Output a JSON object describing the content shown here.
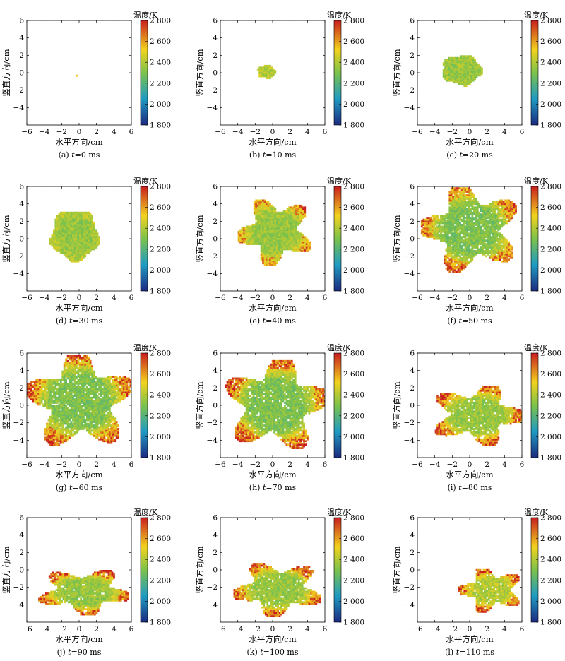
{
  "figure": {
    "xlabel": "水平方向/cm",
    "ylabel": "竖直方向/cm",
    "colorbar_label": "温度/K",
    "colorbar_ticks": [
      "1 800",
      "2 000",
      "2 200",
      "2 400",
      "2 600",
      "2 800"
    ],
    "x_ticks": [
      "−6",
      "−4",
      "−2",
      "0",
      "2",
      "4",
      "6"
    ],
    "y_ticks": [
      "6",
      "4",
      "2",
      "0",
      "−2",
      "−4"
    ],
    "colors": {
      "low": "#1b2a80",
      "mid_low": "#1f9bc2",
      "mid": "#7cc24a",
      "mid_high": "#f2d21e",
      "high": "#c81e1e"
    }
  },
  "chart_data": [
    {
      "type": "heatmap",
      "caption_letter": "(a)",
      "caption_time": "0 ms",
      "caption_eq": "t=",
      "time_ms": 0,
      "xlim": [
        -6,
        6
      ],
      "ylim": [
        -6,
        6
      ],
      "zlim": [
        1800,
        2800
      ],
      "xlabel": "水平方向/cm",
      "ylabel": "竖直方向/cm",
      "colorbar_label": "温度/K",
      "flame_region": {
        "cx": -0.4,
        "cy": -0.5,
        "rx": 0.15,
        "ry": 0.12,
        "core_temp_K": 2650,
        "edge_temp_K": 2500
      }
    },
    {
      "type": "heatmap",
      "caption_letter": "(b)",
      "caption_time": "10 ms",
      "caption_eq": "t=",
      "time_ms": 10,
      "xlim": [
        -6,
        6
      ],
      "ylim": [
        -6,
        6
      ],
      "zlim": [
        1800,
        2800
      ],
      "xlabel": "水平方向/cm",
      "ylabel": "竖直方向/cm",
      "colorbar_label": "温度/K",
      "flame_region": {
        "cx": -0.8,
        "cy": 0.0,
        "rx": 1.2,
        "ry": 0.9,
        "core_temp_K": 2400,
        "edge_temp_K": 2450
      }
    },
    {
      "type": "heatmap",
      "caption_letter": "(c)",
      "caption_time": "20 ms",
      "caption_eq": "t=",
      "time_ms": 20,
      "xlim": [
        -6,
        6
      ],
      "ylim": [
        -6,
        6
      ],
      "zlim": [
        1800,
        2800
      ],
      "xlabel": "水平方向/cm",
      "ylabel": "竖直方向/cm",
      "colorbar_label": "温度/K",
      "flame_region": {
        "cx": -1.0,
        "cy": 0.2,
        "rx": 2.7,
        "ry": 2.0,
        "core_temp_K": 2350,
        "edge_temp_K": 2400
      }
    },
    {
      "type": "heatmap",
      "caption_letter": "(d)",
      "caption_time": "30 ms",
      "caption_eq": "t=",
      "time_ms": 30,
      "xlim": [
        -6,
        6
      ],
      "ylim": [
        -6,
        6
      ],
      "zlim": [
        1800,
        2800
      ],
      "xlabel": "水平方向/cm",
      "ylabel": "竖直方向/cm",
      "colorbar_label": "温度/K",
      "flame_region": {
        "cx": -0.6,
        "cy": 0.3,
        "rx": 3.2,
        "ry": 3.4,
        "core_temp_K": 2350,
        "edge_temp_K": 2450
      }
    },
    {
      "type": "heatmap",
      "caption_letter": "(e)",
      "caption_time": "40 ms",
      "caption_eq": "t=",
      "time_ms": 40,
      "xlim": [
        -6,
        6
      ],
      "ylim": [
        -6,
        6
      ],
      "zlim": [
        1800,
        2800
      ],
      "xlabel": "水平方向/cm",
      "ylabel": "竖直方向/cm",
      "colorbar_label": "温度/K",
      "flame_region": {
        "cx": 0.2,
        "cy": 0.7,
        "rx": 4.2,
        "ry": 3.8,
        "core_temp_K": 2350,
        "edge_temp_K": 2550
      }
    },
    {
      "type": "heatmap",
      "caption_letter": "(f)",
      "caption_time": "50 ms",
      "caption_eq": "t=",
      "time_ms": 50,
      "xlim": [
        -6,
        6
      ],
      "ylim": [
        -6,
        6
      ],
      "zlim": [
        1800,
        2800
      ],
      "xlabel": "水平方向/cm",
      "ylabel": "竖直方向/cm",
      "colorbar_label": "温度/K",
      "flame_region": {
        "cx": 0.0,
        "cy": 1.0,
        "rx": 5.6,
        "ry": 4.9,
        "core_temp_K": 2300,
        "edge_temp_K": 2600
      }
    },
    {
      "type": "heatmap",
      "caption_letter": "(g)",
      "caption_time": "60 ms",
      "caption_eq": "t=",
      "time_ms": 60,
      "xlim": [
        -6,
        6
      ],
      "ylim": [
        -6,
        6
      ],
      "zlim": [
        1800,
        2800
      ],
      "xlabel": "水平方向/cm",
      "ylabel": "竖直方向/cm",
      "colorbar_label": "温度/K",
      "flame_region": {
        "cx": 0.0,
        "cy": 0.4,
        "rx": 6.0,
        "ry": 5.4,
        "core_temp_K": 2300,
        "edge_temp_K": 2650
      }
    },
    {
      "type": "heatmap",
      "caption_letter": "(h)",
      "caption_time": "70 ms",
      "caption_eq": "t=",
      "time_ms": 70,
      "xlim": [
        -6,
        6
      ],
      "ylim": [
        -6,
        6
      ],
      "zlim": [
        1800,
        2800
      ],
      "xlabel": "水平方向/cm",
      "ylabel": "竖直方向/cm",
      "colorbar_label": "温度/K",
      "flame_region": {
        "cx": 0.3,
        "cy": 0.0,
        "rx": 5.8,
        "ry": 5.2,
        "core_temp_K": 2300,
        "edge_temp_K": 2650
      }
    },
    {
      "type": "heatmap",
      "caption_letter": "(i)",
      "caption_time": "80 ms",
      "caption_eq": "t=",
      "time_ms": 80,
      "xlim": [
        -6,
        6
      ],
      "ylim": [
        -6,
        6
      ],
      "zlim": [
        1800,
        2800
      ],
      "xlabel": "水平方向/cm",
      "ylabel": "竖直方向/cm",
      "colorbar_label": "温度/K",
      "flame_region": {
        "cx": 0.8,
        "cy": -1.2,
        "rx": 5.2,
        "ry": 3.4,
        "core_temp_K": 2350,
        "edge_temp_K": 2650
      }
    },
    {
      "type": "heatmap",
      "caption_letter": "(j)",
      "caption_time": "90 ms",
      "caption_eq": "t=",
      "time_ms": 90,
      "xlim": [
        -6,
        6
      ],
      "ylim": [
        -6,
        6
      ],
      "zlim": [
        1800,
        2800
      ],
      "xlabel": "水平方向/cm",
      "ylabel": "竖直方向/cm",
      "colorbar_label": "温度/K",
      "flame_region": {
        "cx": 0.5,
        "cy": -2.6,
        "rx": 5.2,
        "ry": 2.6,
        "core_temp_K": 2350,
        "edge_temp_K": 2650
      }
    },
    {
      "type": "heatmap",
      "caption_letter": "(k)",
      "caption_time": "100 ms",
      "caption_eq": "t=",
      "time_ms": 100,
      "xlim": [
        -6,
        6
      ],
      "ylim": [
        -6,
        6
      ],
      "zlim": [
        1800,
        2800
      ],
      "xlabel": "水平方向/cm",
      "ylabel": "竖直方向/cm",
      "colorbar_label": "温度/K",
      "flame_region": {
        "cx": 0.5,
        "cy": -2.3,
        "rx": 5.0,
        "ry": 3.1,
        "core_temp_K": 2350,
        "edge_temp_K": 2650
      }
    },
    {
      "type": "heatmap",
      "caption_letter": "(l)",
      "caption_time": "110 ms",
      "caption_eq": "t=",
      "time_ms": 110,
      "xlim": [
        -6,
        6
      ],
      "ylim": [
        -6,
        6
      ],
      "zlim": [
        1800,
        2800
      ],
      "xlabel": "水平方向/cm",
      "ylabel": "竖直方向/cm",
      "colorbar_label": "温度/K",
      "flame_region": {
        "cx": 2.3,
        "cy": -2.4,
        "rx": 3.6,
        "ry": 2.5,
        "core_temp_K": 2400,
        "edge_temp_K": 2650
      }
    }
  ]
}
